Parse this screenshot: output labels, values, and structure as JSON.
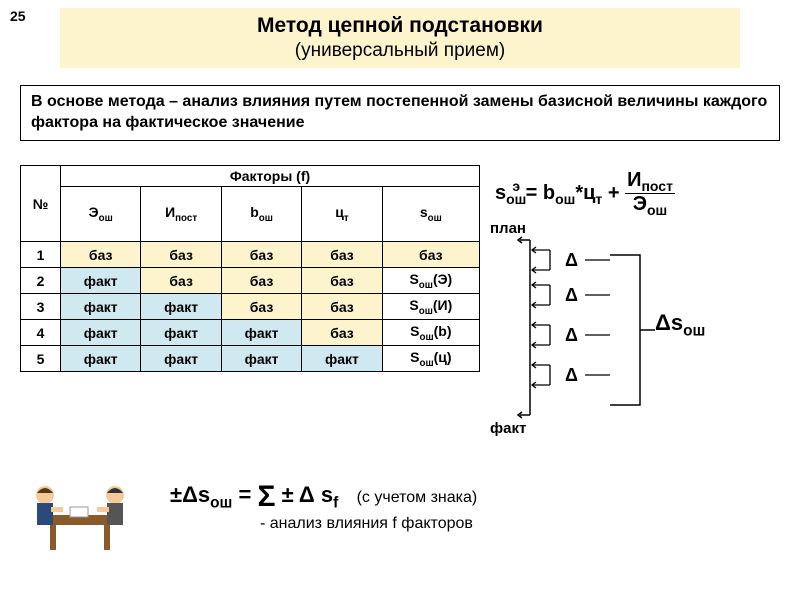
{
  "page_number": "25",
  "title": {
    "main": "Метод цепной подстановки",
    "sub": "(универсальный прием)",
    "bg_color": "#fdf4cd"
  },
  "description": "В основе метода – анализ влияния путем постепенной замены базисной величины каждого фактора на фактическое значение",
  "table": {
    "header_main": "Факторы (f)",
    "header_num": "№",
    "columns": [
      "Эош",
      "Ипост",
      "bош",
      "цт",
      "sош"
    ],
    "columns_html": [
      "Э<sub>ош</sub>",
      "И<sub>пост</sub>",
      "b<sub>ош</sub>",
      "ц<sub>т</sub>",
      "s<sub>ош</sub>"
    ],
    "rows": [
      {
        "n": "1",
        "cells": [
          "баз",
          "баз",
          "баз",
          "баз",
          "баз"
        ],
        "classes": [
          "cell-baz",
          "cell-baz",
          "cell-baz",
          "cell-baz",
          "cell-baz"
        ]
      },
      {
        "n": "2",
        "cells": [
          "факт",
          "баз",
          "баз",
          "баз",
          "S<sub>ош</sub>(Э)"
        ],
        "classes": [
          "cell-fakt",
          "cell-baz",
          "cell-baz",
          "cell-baz",
          "cell-s"
        ]
      },
      {
        "n": "3",
        "cells": [
          "факт",
          "факт",
          "баз",
          "баз",
          "S<sub>ош</sub>(И)"
        ],
        "classes": [
          "cell-fakt",
          "cell-fakt",
          "cell-baz",
          "cell-baz",
          "cell-s"
        ]
      },
      {
        "n": "4",
        "cells": [
          "факт",
          "факт",
          "факт",
          "баз",
          "S<sub>ош</sub>(b)"
        ],
        "classes": [
          "cell-fakt",
          "cell-fakt",
          "cell-fakt",
          "cell-baz",
          "cell-s"
        ]
      },
      {
        "n": "5",
        "cells": [
          "факт",
          "факт",
          "факт",
          "факт",
          "S<sub>ош</sub>(ц)"
        ],
        "classes": [
          "cell-fakt",
          "cell-fakt",
          "cell-fakt",
          "cell-fakt",
          "cell-s"
        ]
      }
    ],
    "colors": {
      "baz": "#fdf4cd",
      "fakt": "#d0e8f0",
      "s": "#ffffff"
    }
  },
  "formula_main_html": "s<sub>ош</sub><sup style='margin-left:-14px;'>э</sup>&nbsp;= b<sub>ош</sub>*ц<sub>т</sub> + <span class='frac'><span class='num'>И<sub>пост</sub></span><span class='den'>Э<sub>ош</sub></span></span>",
  "brackets": {
    "plan": "план",
    "fakt": "факт",
    "delta": "Δ",
    "delta_s_html": "Δs<sub>ош</sub>"
  },
  "bottom_formula_html": "±Δs<sub>ош</sub> = <span style='font-size:30px;vertical-align:-4px;'>Σ</span> ± Δ s<sub>f</sub>",
  "bottom_note": "(с учетом знака)",
  "bottom_sub": "- анализ влияния f факторов"
}
